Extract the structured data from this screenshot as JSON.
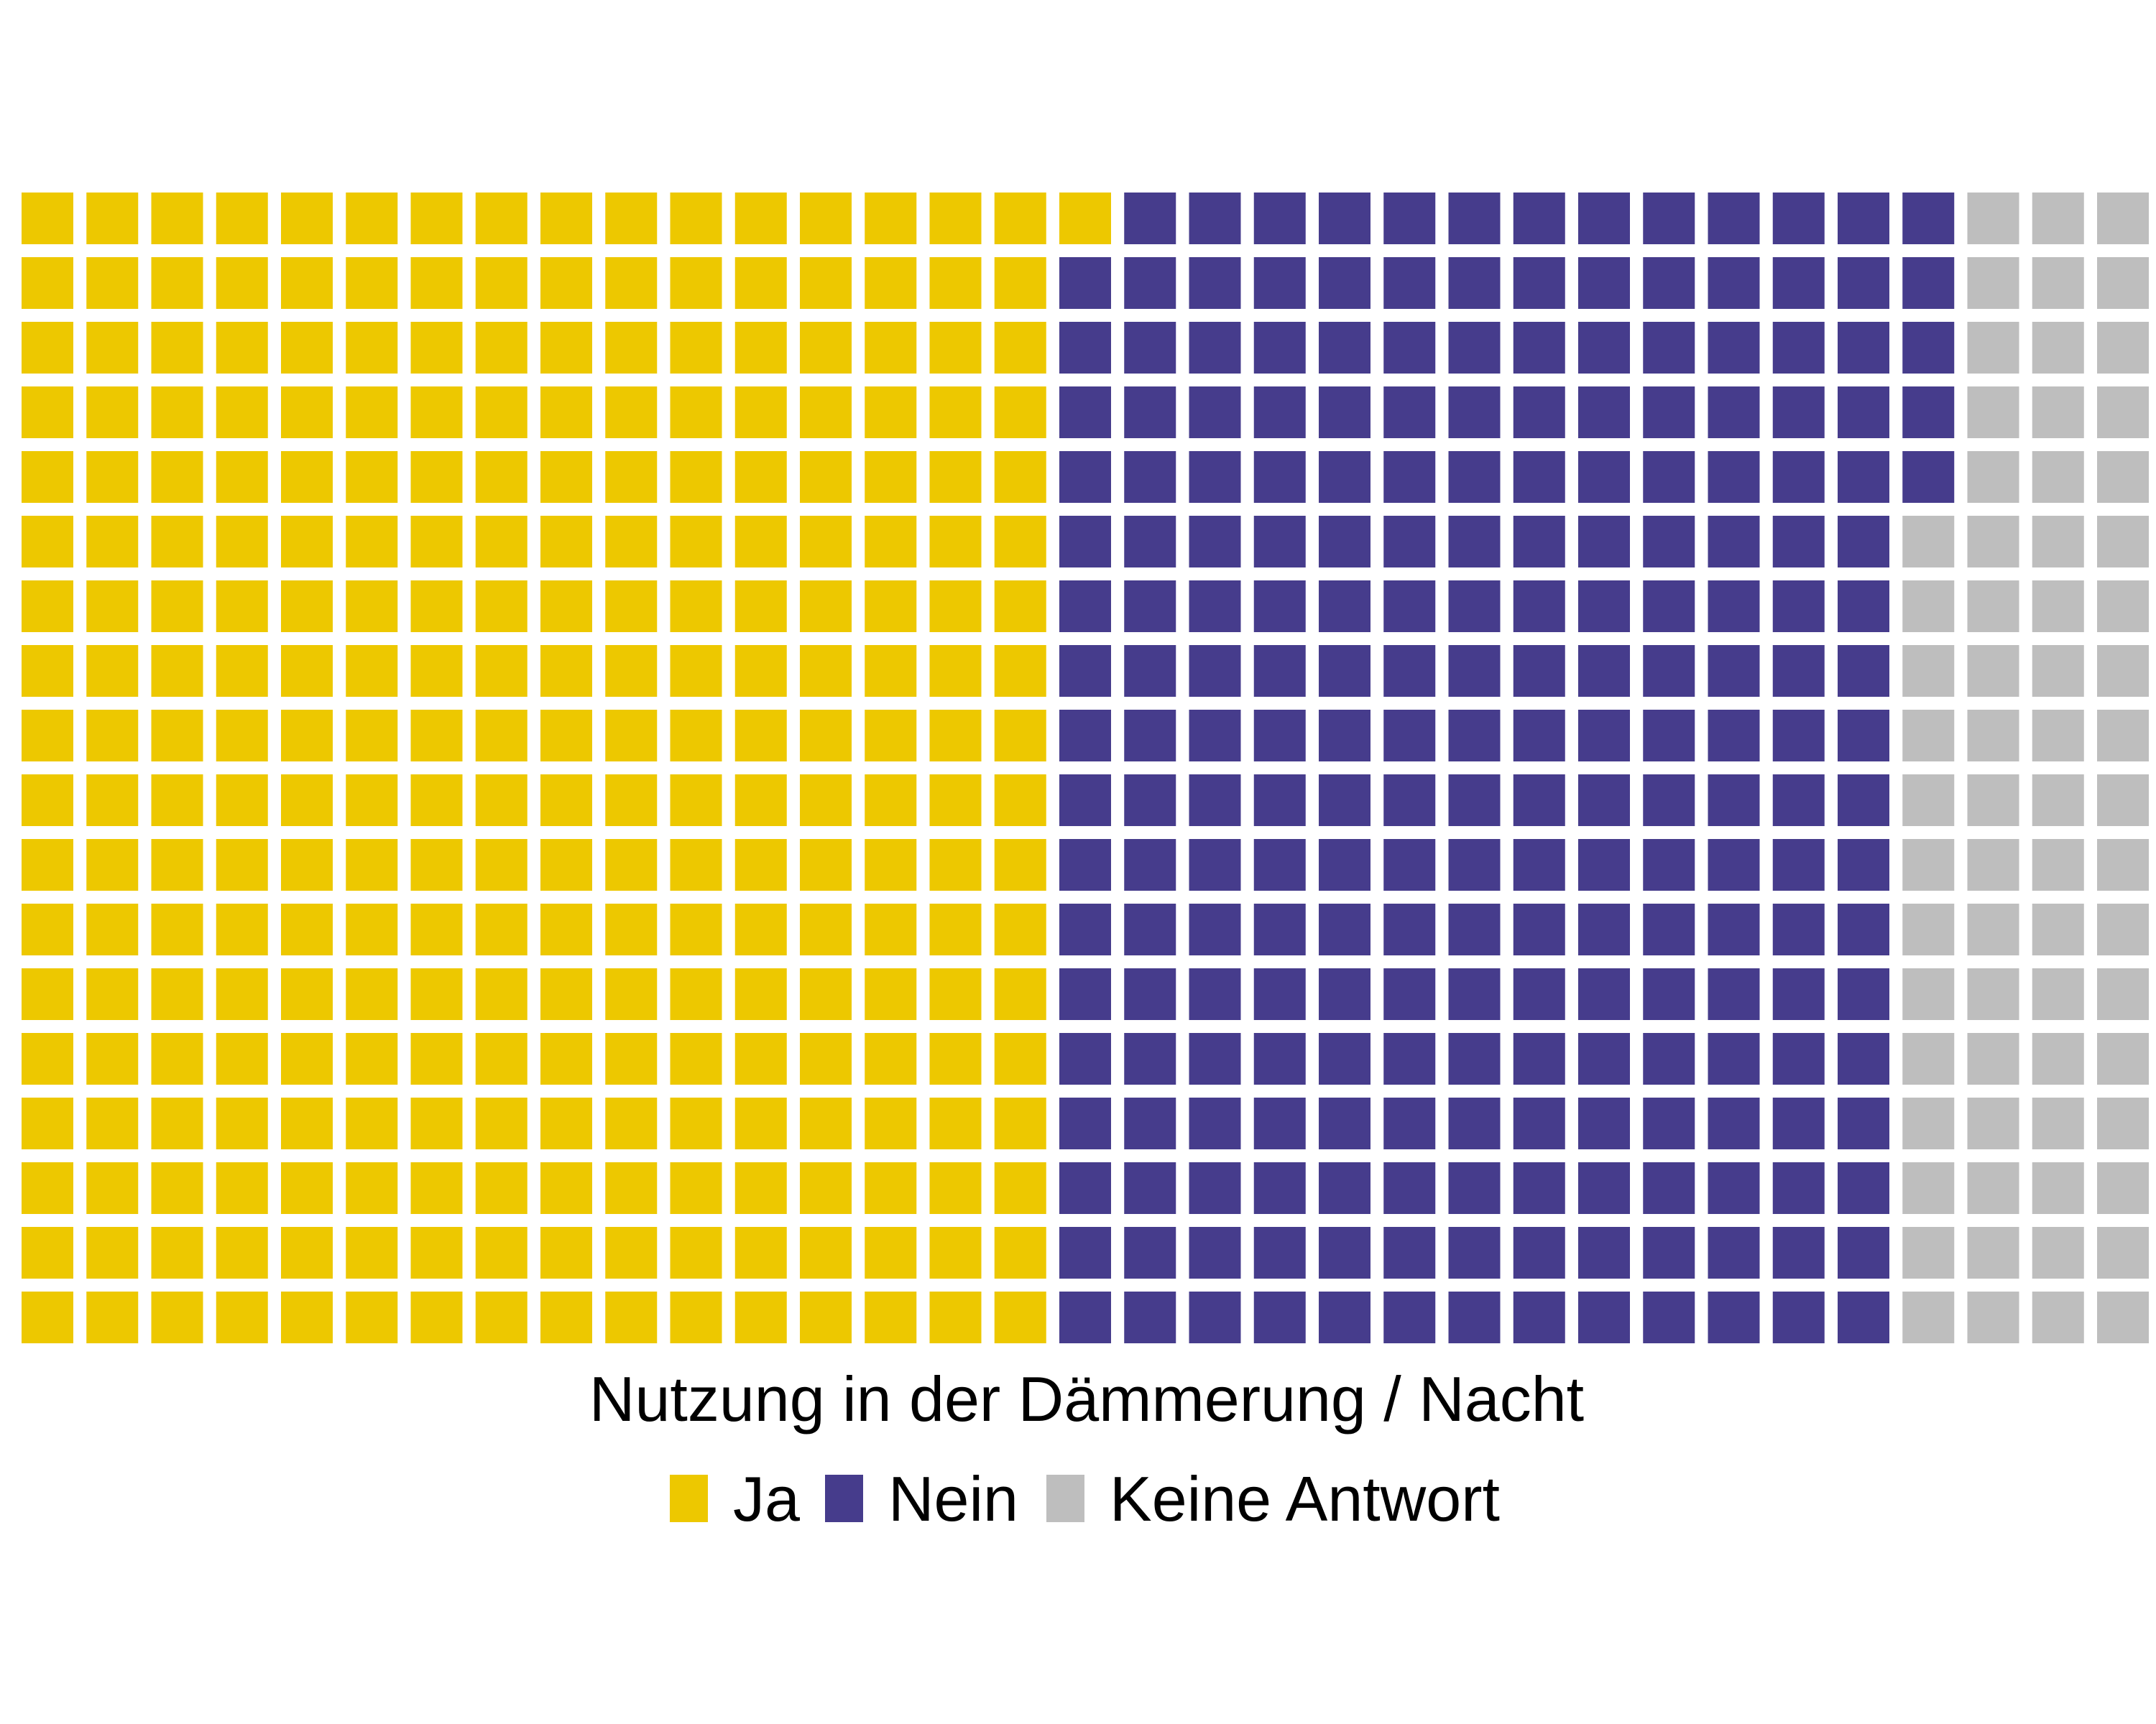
{
  "chart_data": {
    "type": "waffle",
    "rows": 18,
    "columns": 33,
    "fill_order": "column-major, top-to-bottom, left-to-right",
    "categories": [
      "Ja",
      "Nein",
      "Keine Antwort"
    ],
    "values": [
      289,
      238,
      67
    ],
    "colors": [
      "#EDC800",
      "#463C8C",
      "#BEBEBE"
    ],
    "legend_title": "Nutzung in der Dämmerung / Nacht",
    "legend_position": "bottom"
  }
}
